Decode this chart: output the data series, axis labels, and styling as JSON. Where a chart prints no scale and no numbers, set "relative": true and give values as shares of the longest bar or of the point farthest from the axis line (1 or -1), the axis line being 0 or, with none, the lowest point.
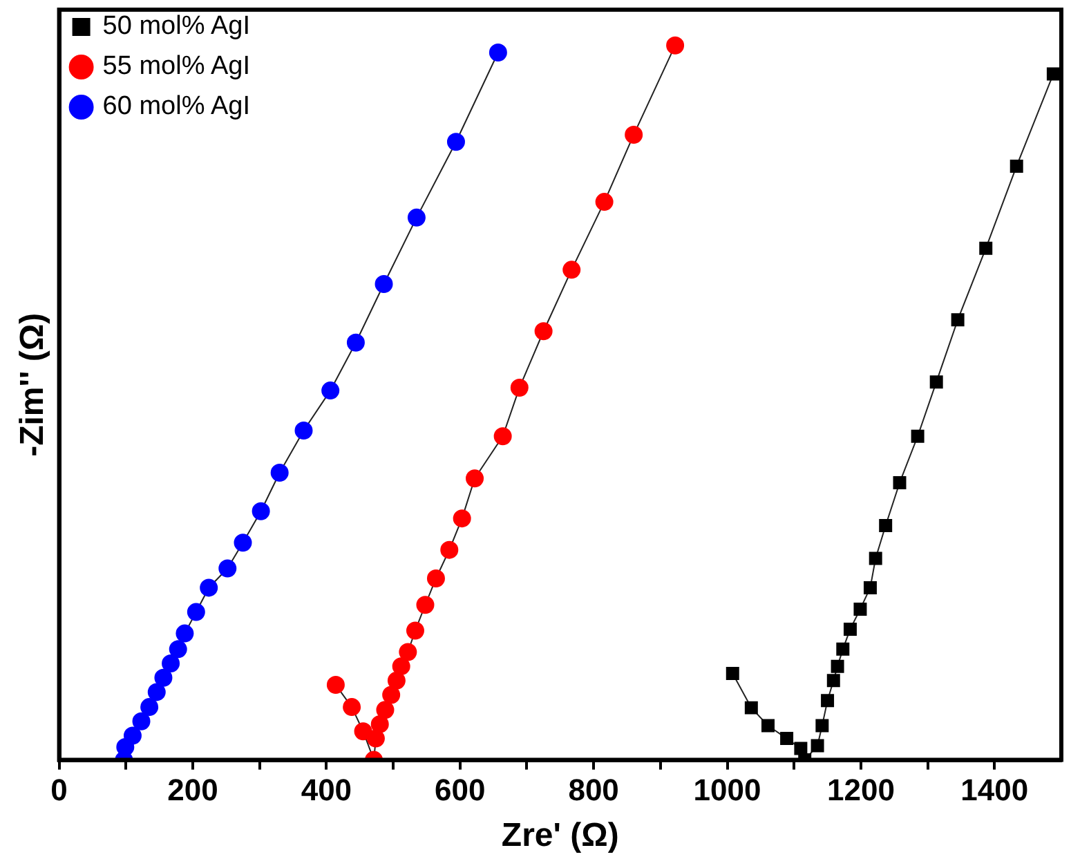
{
  "chart_data": {
    "type": "line",
    "xlabel": "Zre' (Ω)",
    "ylabel": "-Zim'' (Ω)",
    "relative": true,
    "tick_labels": "x",
    "legend": "top left",
    "grid": false,
    "line_style": "solid",
    "xlim": [
      0,
      1500
    ],
    "xticks": [
      0,
      {
        "value": 100,
        "label": null
      },
      200,
      {
        "value": 300,
        "label": null
      },
      400,
      {
        "value": 500,
        "label": null
      },
      600,
      {
        "value": 700,
        "label": null
      },
      800,
      {
        "value": 900,
        "label": null
      },
      1000,
      {
        "value": 1100,
        "label": null
      },
      1200,
      {
        "value": 1300,
        "label": null
      },
      1400
    ],
    "series": [
      {
        "name": "50 mol% AgI",
        "color": "#000000",
        "marker": "square",
        "x": [
          1008,
          1036,
          1061,
          1089,
          1110,
          1116,
          1135,
          1142,
          1150,
          1159,
          1165,
          1173,
          1184,
          1199,
          1214,
          1222,
          1237,
          1258,
          1285,
          1313,
          1345,
          1387,
          1433,
          1488
        ],
        "values": [
          0.121,
          0.073,
          0.048,
          0.03,
          0.016,
          0,
          0.02,
          0.048,
          0.083,
          0.111,
          0.131,
          0.155,
          0.183,
          0.211,
          0.241,
          0.282,
          0.328,
          0.388,
          0.453,
          0.529,
          0.616,
          0.716,
          0.831,
          0.96
        ]
      },
      {
        "name": "55 mol% AgI",
        "color": "#ff0000",
        "marker": "circle",
        "x": [
          414,
          438,
          455,
          471,
          474,
          480,
          488,
          497,
          505,
          512,
          522,
          533,
          548,
          564,
          584,
          603,
          622,
          664,
          689,
          725,
          767,
          816,
          860,
          922
        ],
        "values": [
          0.105,
          0.074,
          0.04,
          0,
          0.03,
          0.05,
          0.07,
          0.091,
          0.111,
          0.131,
          0.151,
          0.181,
          0.217,
          0.254,
          0.294,
          0.338,
          0.394,
          0.453,
          0.521,
          0.6,
          0.686,
          0.781,
          0.875,
          1
        ]
      },
      {
        "name": "60 mol% AgI",
        "color": "#0000ff",
        "marker": "circle",
        "x": [
          97,
          99,
          110,
          123,
          135,
          146,
          156,
          167,
          178,
          188,
          205,
          224,
          252,
          275,
          302,
          330,
          366,
          406,
          444,
          486,
          535,
          594,
          657
        ],
        "values": [
          0,
          0.018,
          0.034,
          0.054,
          0.074,
          0.095,
          0.115,
          0.135,
          0.155,
          0.177,
          0.207,
          0.241,
          0.268,
          0.304,
          0.348,
          0.402,
          0.461,
          0.517,
          0.584,
          0.666,
          0.759,
          0.865,
          0.99
        ]
      }
    ]
  }
}
